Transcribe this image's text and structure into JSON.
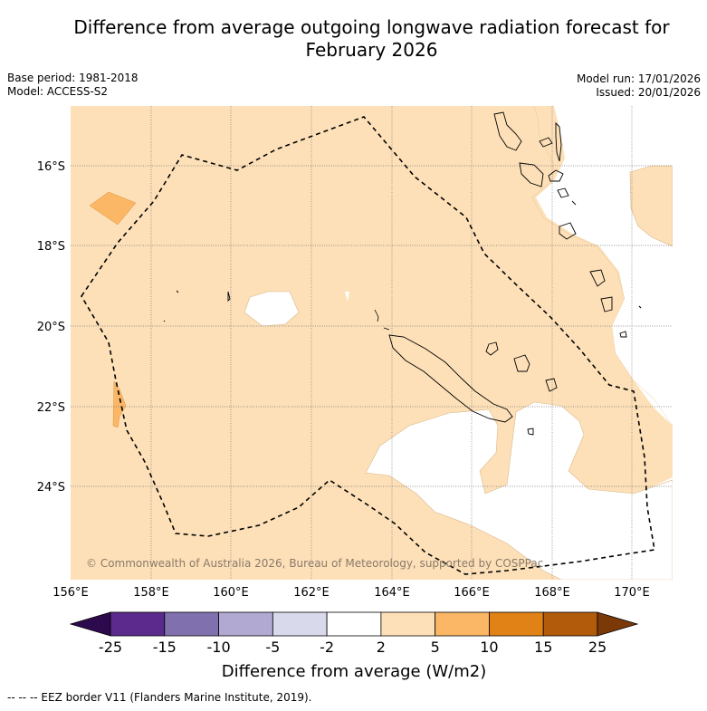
{
  "title_line1": "Difference from average outgoing longwave radiation forecast for",
  "title_line2": "February 2026",
  "base_period": "Base period: 1981-2018",
  "model": "Model: ACCESS-S2",
  "model_run": "Model run: 17/01/2026",
  "issued": "Issued: 20/01/2026",
  "copyright": "© Commonwealth of Australia 2026, Bureau of Meteorology, supported by COSPPac",
  "lat_labels": [
    "16°S",
    "18°S",
    "20°S",
    "22°S",
    "24°S"
  ],
  "lon_labels": [
    "156°E",
    "158°E",
    "160°E",
    "162°E",
    "164°E",
    "166°E",
    "168°E",
    "170°E"
  ],
  "colorbar": {
    "ticks": [
      "-25",
      "-15",
      "-10",
      "-5",
      "-2",
      "2",
      "5",
      "10",
      "15",
      "25"
    ],
    "colors": [
      "#2d0a4e",
      "#5b2a8c",
      "#8170ae",
      "#b2a9d3",
      "#d9d9ec",
      "#ffffff",
      "#fde0b8",
      "#fbb765",
      "#e08216",
      "#b15b0b",
      "#7b3908"
    ],
    "title": "Difference from average (W/m2)"
  },
  "legend_text": "--  --  -- EEZ border V11 (Flanders Marine Institute, 2019)."
}
